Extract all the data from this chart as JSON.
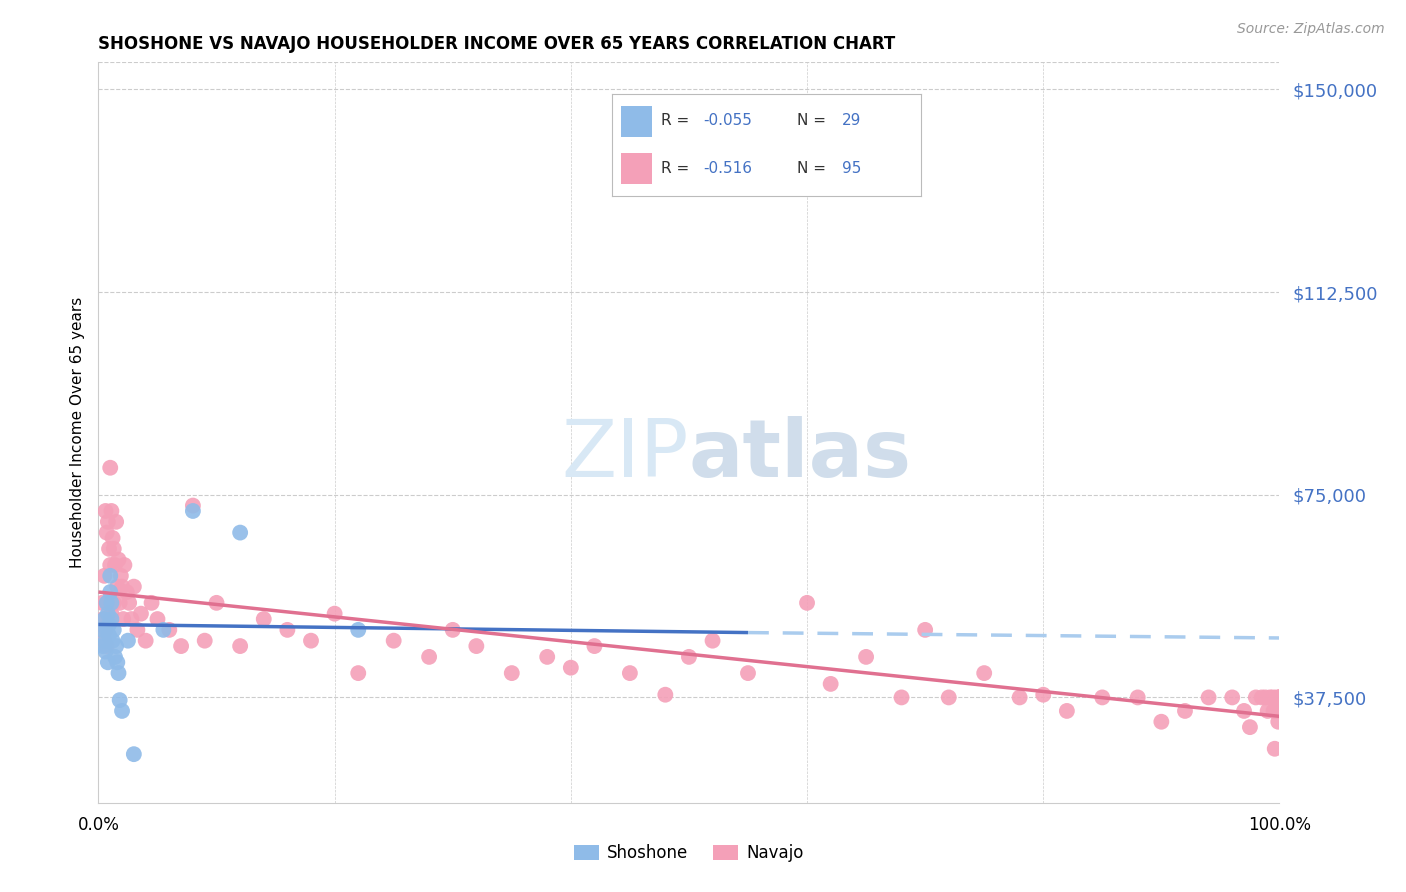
{
  "title": "SHOSHONE VS NAVAJO HOUSEHOLDER INCOME OVER 65 YEARS CORRELATION CHART",
  "source": "Source: ZipAtlas.com",
  "ylabel": "Householder Income Over 65 years",
  "ylim": [
    18000,
    155000
  ],
  "xlim": [
    0.0,
    1.0
  ],
  "ytick_vals": [
    37500,
    75000,
    112500,
    150000
  ],
  "ytick_labels": [
    "$37,500",
    "$75,000",
    "$112,500",
    "$150,000"
  ],
  "shoshone_color": "#8FBBE8",
  "navajo_color": "#F4A0B8",
  "shoshone_line_color": "#4472C4",
  "navajo_line_color": "#E07090",
  "dash_color": "#AACCEE",
  "background_color": "#FFFFFF",
  "grid_color": "#CCCCCC",
  "watermark_color": "#D8E8F5",
  "shoshone_x": [
    0.003,
    0.004,
    0.005,
    0.006,
    0.006,
    0.007,
    0.007,
    0.008,
    0.008,
    0.009,
    0.009,
    0.01,
    0.01,
    0.011,
    0.011,
    0.012,
    0.013,
    0.014,
    0.015,
    0.016,
    0.017,
    0.018,
    0.02,
    0.025,
    0.03,
    0.055,
    0.08,
    0.12,
    0.22
  ],
  "shoshone_y": [
    50000,
    47000,
    52000,
    48000,
    46000,
    55000,
    50000,
    53000,
    44000,
    51000,
    49000,
    60000,
    57000,
    55000,
    52000,
    48000,
    50000,
    45000,
    47000,
    44000,
    42000,
    37000,
    35000,
    48000,
    27000,
    50000,
    72000,
    68000,
    50000
  ],
  "navajo_x": [
    0.003,
    0.004,
    0.005,
    0.005,
    0.006,
    0.006,
    0.007,
    0.007,
    0.008,
    0.008,
    0.009,
    0.009,
    0.01,
    0.01,
    0.011,
    0.011,
    0.012,
    0.013,
    0.013,
    0.014,
    0.015,
    0.016,
    0.017,
    0.018,
    0.019,
    0.02,
    0.021,
    0.022,
    0.024,
    0.026,
    0.028,
    0.03,
    0.033,
    0.036,
    0.04,
    0.045,
    0.05,
    0.06,
    0.07,
    0.08,
    0.09,
    0.1,
    0.12,
    0.14,
    0.16,
    0.18,
    0.2,
    0.22,
    0.25,
    0.28,
    0.3,
    0.32,
    0.35,
    0.38,
    0.4,
    0.42,
    0.45,
    0.48,
    0.5,
    0.52,
    0.55,
    0.6,
    0.62,
    0.65,
    0.68,
    0.7,
    0.72,
    0.75,
    0.78,
    0.8,
    0.82,
    0.85,
    0.88,
    0.9,
    0.92,
    0.94,
    0.96,
    0.97,
    0.975,
    0.98,
    0.985,
    0.988,
    0.99,
    0.992,
    0.994,
    0.995,
    0.996,
    0.997,
    0.998,
    0.999,
    1.0,
    1.0,
    1.0,
    1.0,
    1.0
  ],
  "navajo_y": [
    55000,
    52000,
    60000,
    48000,
    72000,
    50000,
    68000,
    47000,
    70000,
    55000,
    65000,
    52000,
    80000,
    62000,
    72000,
    53000,
    67000,
    65000,
    55000,
    62000,
    70000,
    58000,
    63000,
    55000,
    60000,
    58000,
    52000,
    62000,
    57000,
    55000,
    52000,
    58000,
    50000,
    53000,
    48000,
    55000,
    52000,
    50000,
    47000,
    73000,
    48000,
    55000,
    47000,
    52000,
    50000,
    48000,
    53000,
    42000,
    48000,
    45000,
    50000,
    47000,
    42000,
    45000,
    43000,
    47000,
    42000,
    38000,
    45000,
    48000,
    42000,
    55000,
    40000,
    45000,
    37500,
    50000,
    37500,
    42000,
    37500,
    38000,
    35000,
    37500,
    37500,
    33000,
    35000,
    37500,
    37500,
    35000,
    32000,
    37500,
    37500,
    37500,
    35000,
    37500,
    37500,
    35000,
    28000,
    37500,
    35000,
    33000,
    37500,
    37500,
    37500,
    35000,
    37500
  ]
}
